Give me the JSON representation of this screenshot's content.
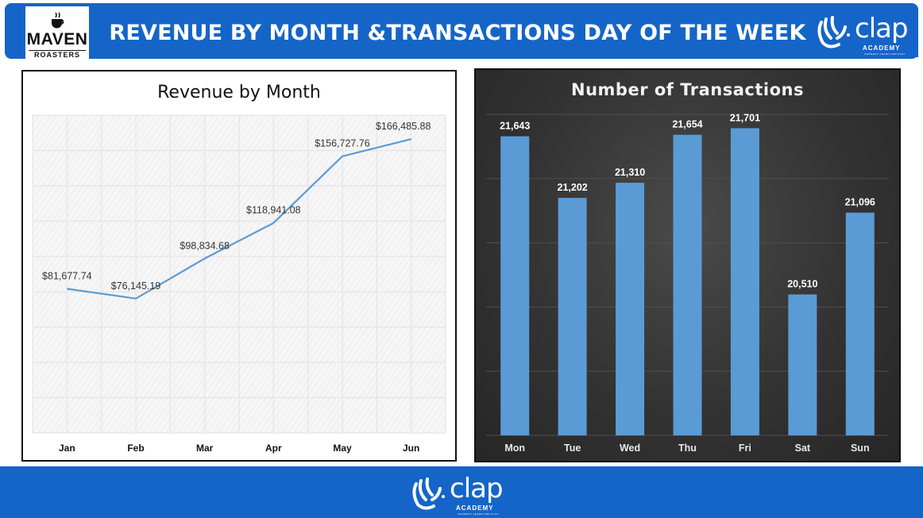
{
  "header": {
    "title": "REVENUE BY MONTH &TRANSACTIONS DAY OF THE WEEK",
    "brand_left": {
      "name": "MAVEN",
      "sub": "ROASTERS"
    },
    "brand_right": {
      "name": "clap",
      "academy": "ACADEMY",
      "tagline": "CONNECT LEARN AND PLAY"
    },
    "color": "#1565c8"
  },
  "footer": {
    "brand": {
      "name": "clap",
      "academy": "ACADEMY",
      "tagline": "CONNECT LEARN AND PLAY"
    }
  },
  "chart_data": [
    {
      "type": "line",
      "title": "Revenue by Month",
      "categories": [
        "Jan",
        "Feb",
        "Mar",
        "Apr",
        "May",
        "Jun"
      ],
      "values": [
        81677.74,
        76145.19,
        98834.68,
        118941.08,
        156727.76,
        166485.88
      ],
      "labels": [
        "$81,677.74",
        "$76,145.19",
        "$98,834.68",
        "$118,941.08",
        "$156,727.76",
        "$166,485.88"
      ],
      "ylim": [
        0,
        180000
      ],
      "grid": true,
      "line_color": "#5b9bd5"
    },
    {
      "type": "bar",
      "title": "Number of Transactions",
      "categories": [
        "Mon",
        "Tue",
        "Wed",
        "Thu",
        "Fri",
        "Sat",
        "Sun"
      ],
      "values": [
        21643,
        21202,
        21310,
        21654,
        21701,
        20510,
        21096
      ],
      "labels": [
        "21,643",
        "21,202",
        "21,310",
        "21,654",
        "21,701",
        "20,510",
        "21,096"
      ],
      "ylim": [
        19500,
        21800
      ],
      "grid": true,
      "bar_color": "#5b9bd5"
    }
  ]
}
